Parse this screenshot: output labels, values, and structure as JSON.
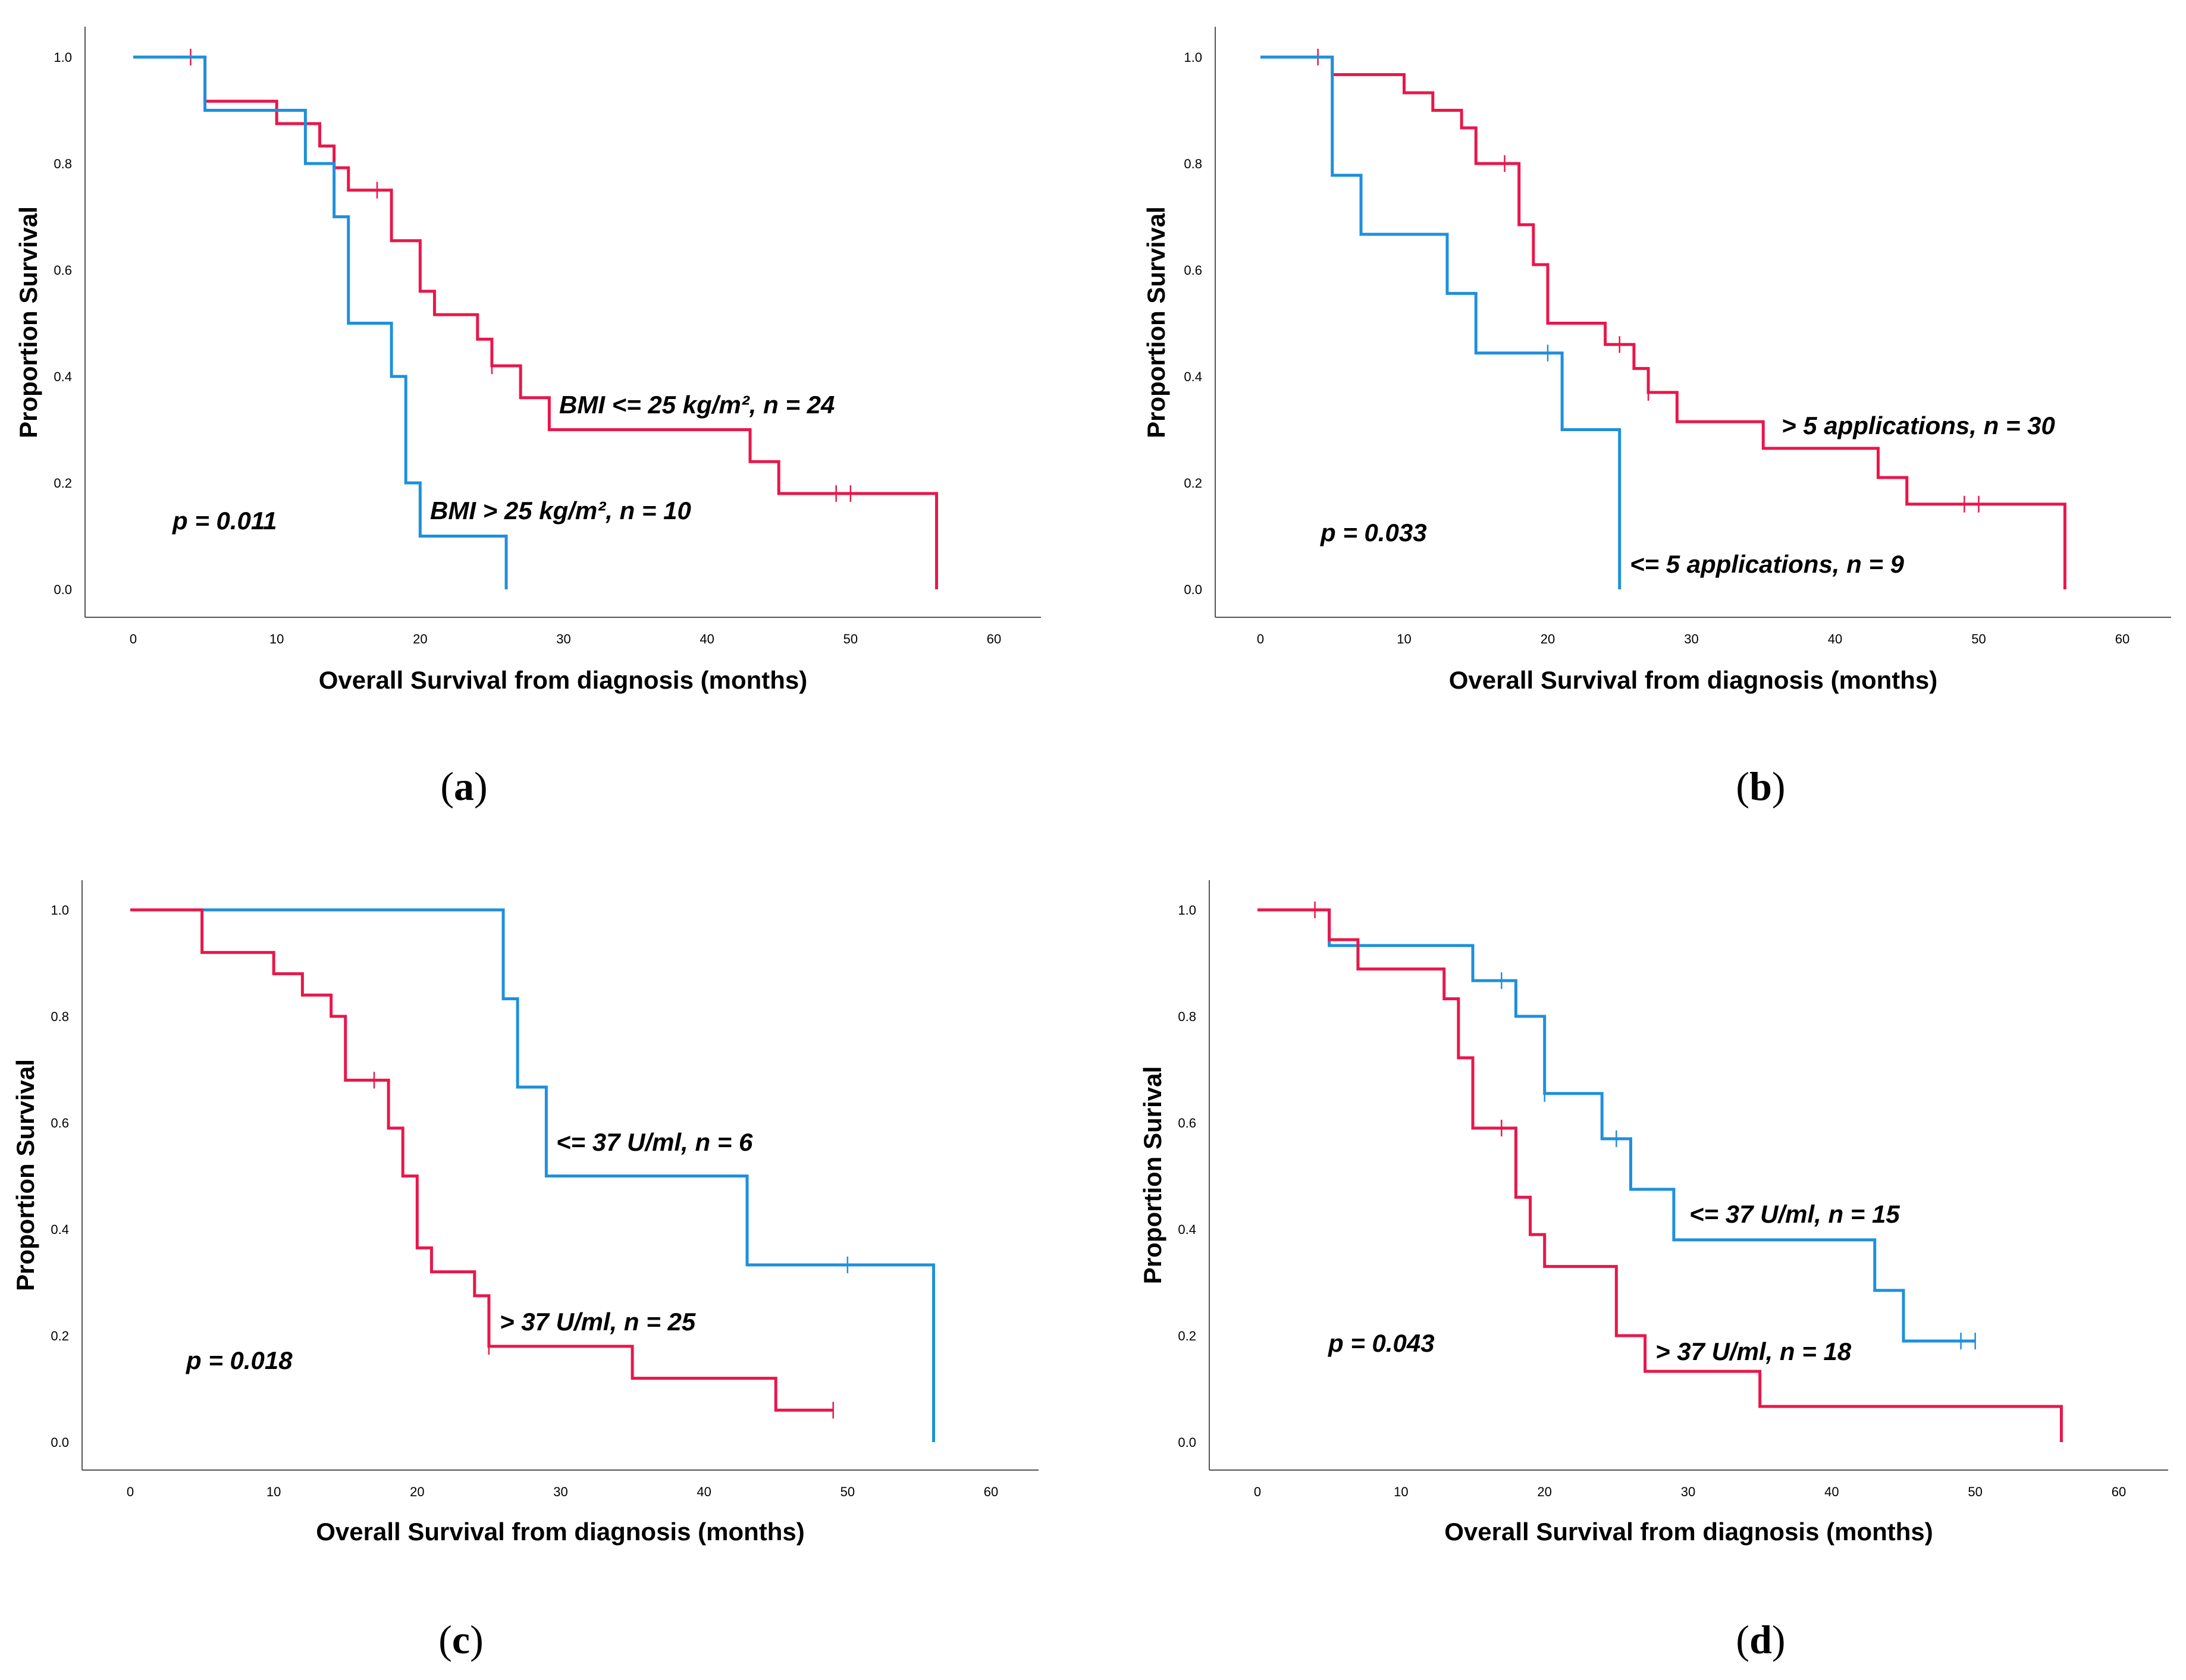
{
  "chart_data": [
    {
      "id": "a",
      "type": "line",
      "subtype": "kaplan-meier",
      "caption": {
        "open": "(",
        "letter": "a",
        "close": ")"
      },
      "xlabel": "Overall Survival from diagnosis (months)",
      "ylabel": "Proportion Survival",
      "xlim": [
        0,
        60
      ],
      "ylim": [
        0,
        1
      ],
      "xticks": [
        "0",
        "10",
        "20",
        "30",
        "40",
        "50",
        "60"
      ],
      "yticks": [
        "0.0",
        "0.2",
        "0.4",
        "0.6",
        "0.8",
        "1.0"
      ],
      "pvalue": "p = 0.011",
      "series": [
        {
          "name": "BMI <= 25 kg/m², n = 24",
          "color": "#e8174b",
          "steps": [
            [
              0,
              1.0
            ],
            [
              5,
              0.917
            ],
            [
              10,
              0.875
            ],
            [
              13,
              0.833
            ],
            [
              14,
              0.792
            ],
            [
              15,
              0.75
            ],
            [
              18,
              0.655
            ],
            [
              20,
              0.56
            ],
            [
              21,
              0.516
            ],
            [
              24,
              0.47
            ],
            [
              25,
              0.42
            ],
            [
              27,
              0.36
            ],
            [
              29,
              0.3
            ],
            [
              43,
              0.24
            ],
            [
              45,
              0.18
            ],
            [
              56,
              0.0
            ]
          ],
          "end_x": 56,
          "censors": [
            [
              4,
              1.0
            ],
            [
              17,
              0.75
            ],
            [
              25,
              0.42
            ],
            [
              49,
              0.18
            ],
            [
              50,
              0.18
            ]
          ]
        },
        {
          "name": "BMI > 25 kg/m², n = 10",
          "color": "#1e90dc",
          "steps": [
            [
              0,
              1.0
            ],
            [
              5,
              0.9
            ],
            [
              12,
              0.8
            ],
            [
              14,
              0.7
            ],
            [
              15,
              0.5
            ],
            [
              18,
              0.4
            ],
            [
              19,
              0.2
            ],
            [
              20,
              0.1
            ],
            [
              26,
              0.0
            ]
          ],
          "end_x": 26,
          "censors": []
        }
      ]
    },
    {
      "id": "b",
      "type": "line",
      "subtype": "kaplan-meier",
      "caption": {
        "open": "(",
        "letter": "b",
        "close": ")"
      },
      "xlabel": "Overall Survival from diagnosis (months)",
      "ylabel": "Proportion Survival",
      "xlim": [
        0,
        60
      ],
      "ylim": [
        0,
        1
      ],
      "xticks": [
        "0",
        "10",
        "20",
        "30",
        "40",
        "50",
        "60"
      ],
      "yticks": [
        "0.0",
        "0.2",
        "0.4",
        "0.6",
        "0.8",
        "1.0"
      ],
      "pvalue": "p = 0.033",
      "series": [
        {
          "name": "> 5 applications, n = 30",
          "color": "#e8174b",
          "steps": [
            [
              0,
              1.0
            ],
            [
              5,
              0.967
            ],
            [
              10,
              0.933
            ],
            [
              12,
              0.9
            ],
            [
              14,
              0.867
            ],
            [
              15,
              0.8
            ],
            [
              18,
              0.685
            ],
            [
              19,
              0.61
            ],
            [
              20,
              0.5
            ],
            [
              24,
              0.46
            ],
            [
              26,
              0.415
            ],
            [
              27,
              0.37
            ],
            [
              29,
              0.315
            ],
            [
              35,
              0.265
            ],
            [
              43,
              0.21
            ],
            [
              45,
              0.16
            ],
            [
              56,
              0.0
            ]
          ],
          "end_x": 56,
          "censors": [
            [
              4,
              1.0
            ],
            [
              17,
              0.8
            ],
            [
              25,
              0.46
            ],
            [
              27,
              0.37
            ],
            [
              49,
              0.16
            ],
            [
              50,
              0.16
            ]
          ]
        },
        {
          "name": "<= 5 applications, n = 9",
          "color": "#1e90dc",
          "steps": [
            [
              0,
              1.0
            ],
            [
              5,
              0.778
            ],
            [
              7,
              0.667
            ],
            [
              13,
              0.556
            ],
            [
              15,
              0.444
            ],
            [
              21,
              0.3
            ],
            [
              25,
              0.0
            ]
          ],
          "end_x": 25,
          "censors": [
            [
              20,
              0.444
            ]
          ]
        }
      ]
    },
    {
      "id": "c",
      "type": "line",
      "subtype": "kaplan-meier",
      "caption": {
        "open": "(",
        "letter": "c",
        "close": ")"
      },
      "xlabel": "Overall Survival from diagnosis (months)",
      "ylabel": "Proportion Survival",
      "xlim": [
        0,
        60
      ],
      "ylim": [
        0,
        1
      ],
      "xticks": [
        "0",
        "10",
        "20",
        "30",
        "40",
        "50",
        "60"
      ],
      "yticks": [
        "0.0",
        "0.2",
        "0.4",
        "0.6",
        "0.8",
        "1.0"
      ],
      "pvalue": "p = 0.018",
      "series": [
        {
          "name": "<= 37 U/ml, n = 6",
          "color": "#1e90dc",
          "steps": [
            [
              0,
              1.0
            ],
            [
              26,
              0.833
            ],
            [
              27,
              0.667
            ],
            [
              29,
              0.5
            ],
            [
              43,
              0.333
            ],
            [
              56,
              0.0
            ]
          ],
          "end_x": 56,
          "censors": [
            [
              50,
              0.333
            ]
          ]
        },
        {
          "name": "> 37 U/ml, n = 25",
          "color": "#e8174b",
          "steps": [
            [
              0,
              1.0
            ],
            [
              5,
              0.92
            ],
            [
              10,
              0.88
            ],
            [
              12,
              0.84
            ],
            [
              14,
              0.8
            ],
            [
              15,
              0.68
            ],
            [
              18,
              0.59
            ],
            [
              19,
              0.5
            ],
            [
              20,
              0.365
            ],
            [
              21,
              0.32
            ],
            [
              24,
              0.275
            ],
            [
              25,
              0.18
            ],
            [
              35,
              0.12
            ],
            [
              45,
              0.06
            ]
          ],
          "end_x": 49,
          "censors": [
            [
              17,
              0.68
            ],
            [
              25,
              0.18
            ],
            [
              49,
              0.06
            ]
          ]
        }
      ]
    },
    {
      "id": "d",
      "type": "line",
      "subtype": "kaplan-meier",
      "caption": {
        "open": "(",
        "letter": "d",
        "close": ")"
      },
      "xlabel": "Overall Survival from diagnosis (months)",
      "ylabel": "Proportion Surival",
      "xlim": [
        0,
        60
      ],
      "ylim": [
        0,
        1
      ],
      "xticks": [
        "0",
        "10",
        "20",
        "30",
        "40",
        "50",
        "60"
      ],
      "yticks": [
        "0.0",
        "0.2",
        "0.4",
        "0.6",
        "0.8",
        "1.0"
      ],
      "pvalue": "p = 0.043",
      "series": [
        {
          "name": "<= 37 U/ml, n = 15",
          "color": "#1e90dc",
          "steps": [
            [
              0,
              1.0
            ],
            [
              5,
              0.933
            ],
            [
              15,
              0.867
            ],
            [
              18,
              0.8
            ],
            [
              20,
              0.655
            ],
            [
              24,
              0.57
            ],
            [
              26,
              0.475
            ],
            [
              29,
              0.38
            ],
            [
              43,
              0.285
            ],
            [
              45,
              0.19
            ]
          ],
          "end_x": 50,
          "censors": [
            [
              17,
              0.867
            ],
            [
              20,
              0.655
            ],
            [
              25,
              0.57
            ],
            [
              49,
              0.19
            ],
            [
              50,
              0.19
            ]
          ]
        },
        {
          "name": "> 37 U/ml, n = 18",
          "color": "#e8174b",
          "steps": [
            [
              0,
              1.0
            ],
            [
              5,
              0.944
            ],
            [
              7,
              0.889
            ],
            [
              13,
              0.833
            ],
            [
              14,
              0.722
            ],
            [
              15,
              0.59
            ],
            [
              18,
              0.46
            ],
            [
              19,
              0.39
            ],
            [
              20,
              0.33
            ],
            [
              25,
              0.2
            ],
            [
              27,
              0.133
            ],
            [
              35,
              0.067
            ],
            [
              56,
              0.0
            ]
          ],
          "end_x": 56,
          "censors": [
            [
              4,
              1.0
            ],
            [
              17,
              0.59
            ]
          ]
        }
      ]
    }
  ]
}
